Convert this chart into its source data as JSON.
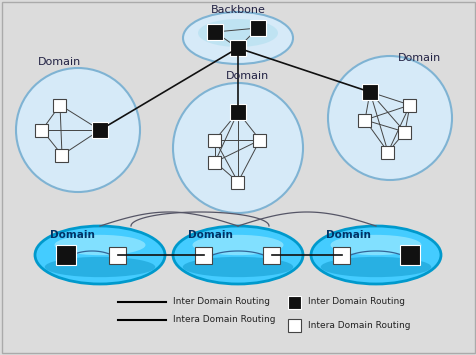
{
  "bg_color": "#dcdcdc",
  "backbone_label": "Backbone",
  "domain_label": "Domain",
  "light_blue_fill": "#d6eaf8",
  "light_blue_edge": "#7fb3d3",
  "bright_blue_fill": "#33bbee",
  "bright_blue_edge": "#0099cc",
  "bright_blue_fill2": "#55ccff",
  "black_router": "#111111",
  "white_router": "#ffffff",
  "inter_line_color": "#111111",
  "intra_line_color": "#444444",
  "legend_line1": "Inter Domain Routing",
  "legend_line2": "Intera Domain Routing",
  "legend_box1": "Inter Domain Routing",
  "legend_box2": "Intera Domain Routing",
  "text_color": "#222244"
}
